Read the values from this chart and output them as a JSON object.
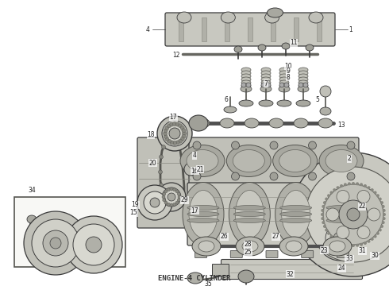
{
  "title": "ENGINE-4 CYLINDER",
  "title_fontsize": 6.5,
  "title_color": "#333333",
  "background_color": "#f5f5f0",
  "fig_width": 4.9,
  "fig_height": 3.6,
  "dpi": 100,
  "image_b64": ""
}
